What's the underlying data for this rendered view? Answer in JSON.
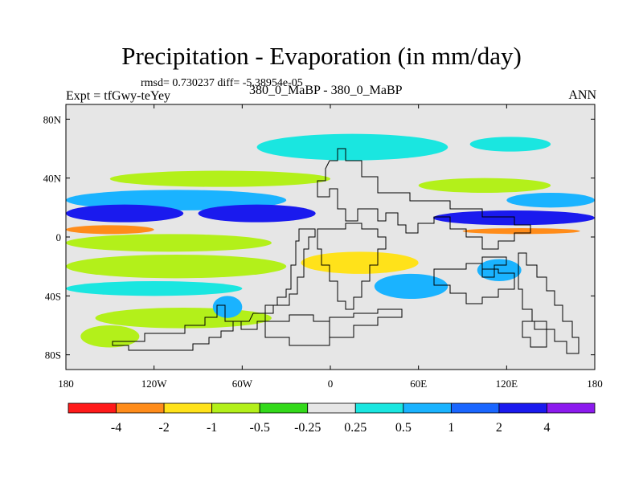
{
  "chart_data": {
    "type": "heatmap",
    "title": "Precipitation - Evaporation (in mm/day)",
    "stats": "rmsd= 0.730237 diff= -5.38954e-05",
    "experiment": "Expt = tfGwy-teYey",
    "case": "380_0_MaBP - 380_0_MaBP",
    "season": "ANN",
    "x_ticks": [
      "180",
      "120W",
      "60W",
      "0",
      "60E",
      "120E",
      "180"
    ],
    "x_tick_values": [
      -180,
      -120,
      -60,
      0,
      60,
      120,
      180
    ],
    "y_ticks": [
      "80N",
      "40N",
      "0",
      "40S",
      "80S"
    ],
    "y_tick_values": [
      80,
      40,
      0,
      -40,
      -80
    ],
    "xlim": [
      -180,
      180
    ],
    "ylim": [
      -90,
      90
    ],
    "colorbar": {
      "labels": [
        "-4",
        "-2",
        "-1",
        "-0.5",
        "-0.25",
        "0.25",
        "0.5",
        "1",
        "2",
        "4"
      ],
      "colors": [
        "#ff1a1a",
        "#ff8c1a",
        "#ffe21a",
        "#b3f01a",
        "#33d91a",
        "#e6e6e6",
        "#1ae6e0",
        "#1ab3ff",
        "#1a66ff",
        "#1a1aee",
        "#8c1aee"
      ]
    },
    "bands": [
      {
        "lat": [
          70,
          52
        ],
        "lon": [
          -50,
          80
        ],
        "level": 0.4
      },
      {
        "lat": [
          68,
          58
        ],
        "lon": [
          95,
          150
        ],
        "level": 0.4
      },
      {
        "lat": [
          45,
          34
        ],
        "lon": [
          -150,
          0
        ],
        "level": -0.6
      },
      {
        "lat": [
          40,
          30
        ],
        "lon": [
          60,
          150
        ],
        "level": -0.6
      },
      {
        "lat": [
          32,
          18
        ],
        "lon": [
          -180,
          -30
        ],
        "level": 0.7
      },
      {
        "lat": [
          30,
          20
        ],
        "lon": [
          120,
          180
        ],
        "level": 0.7
      },
      {
        "lat": [
          22,
          10
        ],
        "lon": [
          -180,
          -100
        ],
        "level": 2.5
      },
      {
        "lat": [
          22,
          10
        ],
        "lon": [
          -90,
          -10
        ],
        "level": 2.5
      },
      {
        "lat": [
          18,
          8
        ],
        "lon": [
          70,
          180
        ],
        "level": 2.5
      },
      {
        "lat": [
          8,
          2
        ],
        "lon": [
          -180,
          -120
        ],
        "level": -3
      },
      {
        "lat": [
          6,
          2
        ],
        "lon": [
          90,
          170
        ],
        "level": -3
      },
      {
        "lat": [
          2,
          -10
        ],
        "lon": [
          -180,
          -40
        ],
        "level": -0.6
      },
      {
        "lat": [
          -12,
          -28
        ],
        "lon": [
          -180,
          -30
        ],
        "level": -0.6
      },
      {
        "lat": [
          -10,
          -25
        ],
        "lon": [
          -20,
          60
        ],
        "level": -1.5
      },
      {
        "lat": [
          -30,
          -40
        ],
        "lon": [
          -180,
          -60
        ],
        "level": 0.4
      },
      {
        "lat": [
          -48,
          -62
        ],
        "lon": [
          -160,
          -40
        ],
        "level": -0.6
      },
      {
        "lat": [
          -40,
          -55
        ],
        "lon": [
          -80,
          -60
        ],
        "level": 0.7
      },
      {
        "lat": [
          -25,
          -42
        ],
        "lon": [
          30,
          80
        ],
        "level": 0.7
      },
      {
        "lat": [
          -15,
          -30
        ],
        "lon": [
          100,
          130
        ],
        "level": 0.7
      },
      {
        "lat": [
          -60,
          -75
        ],
        "lon": [
          -170,
          -130
        ],
        "level": -0.6
      }
    ]
  }
}
